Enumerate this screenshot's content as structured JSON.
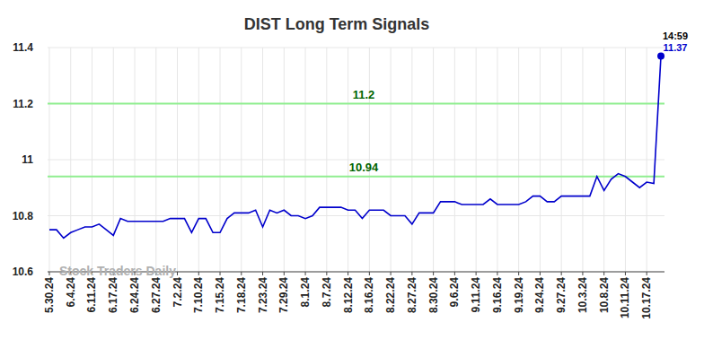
{
  "chart_data": {
    "type": "line",
    "title": "DIST Long Term Signals",
    "categories": [
      "5.30.24",
      null,
      null,
      "6.4.24",
      null,
      null,
      "6.11.24",
      null,
      null,
      "6.17.24",
      null,
      null,
      "6.24.24",
      null,
      null,
      "6.27.24",
      null,
      null,
      "7.2.24",
      null,
      null,
      "7.10.24",
      null,
      null,
      "7.15.24",
      null,
      null,
      "7.18.24",
      null,
      null,
      "7.23.24",
      null,
      null,
      "7.29.24",
      null,
      null,
      "8.1.24",
      null,
      null,
      "8.7.24",
      null,
      null,
      "8.12.24",
      null,
      null,
      "8.16.24",
      null,
      null,
      "8.22.24",
      null,
      null,
      "8.27.24",
      null,
      null,
      "8.30.24",
      null,
      null,
      "9.6.24",
      null,
      null,
      "9.11.24",
      null,
      null,
      "9.16.24",
      null,
      null,
      "9.19.24",
      null,
      null,
      "9.24.24",
      null,
      null,
      "9.27.24",
      null,
      null,
      "10.3.24",
      null,
      null,
      "10.8.24",
      null,
      null,
      "10.11.24",
      null,
      null,
      "10.17.24",
      null,
      null
    ],
    "series": [
      {
        "name": "DIST",
        "color": "#0000cc",
        "values": [
          10.75,
          10.75,
          10.72,
          10.74,
          10.75,
          10.76,
          10.76,
          10.77,
          10.75,
          10.73,
          10.79,
          10.78,
          10.78,
          10.78,
          10.78,
          10.78,
          10.78,
          10.79,
          10.79,
          10.79,
          10.74,
          10.79,
          10.79,
          10.74,
          10.74,
          10.79,
          10.81,
          10.81,
          10.81,
          10.82,
          10.76,
          10.82,
          10.81,
          10.82,
          10.8,
          10.8,
          10.79,
          10.8,
          10.83,
          10.83,
          10.83,
          10.83,
          10.82,
          10.82,
          10.79,
          10.82,
          10.82,
          10.82,
          10.8,
          10.8,
          10.8,
          10.77,
          10.81,
          10.81,
          10.81,
          10.85,
          10.85,
          10.85,
          10.84,
          10.84,
          10.84,
          10.84,
          10.86,
          10.84,
          10.84,
          10.84,
          10.84,
          10.85,
          10.87,
          10.87,
          10.85,
          10.85,
          10.87,
          10.87,
          10.87,
          10.87,
          10.87,
          10.94,
          10.89,
          10.93,
          10.95,
          10.94,
          10.92,
          10.9,
          10.92,
          10.915,
          11.37
        ]
      }
    ],
    "ylim": [
      10.6,
      11.4
    ],
    "yticks": [
      10.6,
      10.8,
      11,
      11.2,
      11.4
    ],
    "grid": true,
    "reference_lines": [
      {
        "value": 11.2,
        "color": "#90ee90"
      },
      {
        "value": 10.94,
        "color": "#90ee90"
      }
    ],
    "time_label": "14:59",
    "watermark": "Stock Traders Daily"
  }
}
